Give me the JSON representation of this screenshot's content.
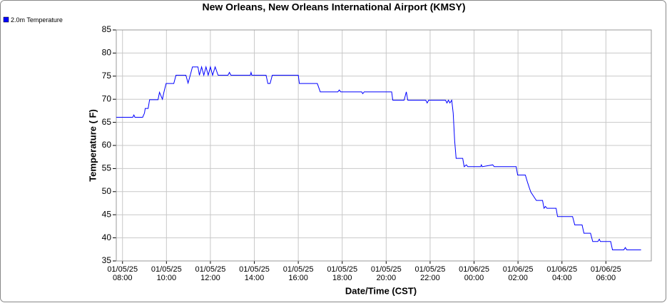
{
  "chart_data": {
    "type": "line",
    "title": "New Orleans, New Orleans International Airport (KMSY)",
    "xlabel": "Date/Time (CST)",
    "ylabel": "Temperature ( F)",
    "legend": "top-left",
    "grid": true,
    "ylim": [
      35,
      85
    ],
    "yticks": [
      35,
      40,
      45,
      50,
      55,
      60,
      65,
      70,
      75,
      80,
      85
    ],
    "xlim": [
      "2025-01-05 07:43",
      "2025-01-06 08:04"
    ],
    "xticks": [
      {
        "value": "2025-01-05 08:00",
        "label": [
          "01/05/25",
          "08:00"
        ]
      },
      {
        "value": "2025-01-05 10:00",
        "label": [
          "01/05/25",
          "10:00"
        ]
      },
      {
        "value": "2025-01-05 12:00",
        "label": [
          "01/05/25",
          "12:00"
        ]
      },
      {
        "value": "2025-01-05 14:00",
        "label": [
          "01/05/25",
          "14:00"
        ]
      },
      {
        "value": "2025-01-05 16:00",
        "label": [
          "01/05/25",
          "16:00"
        ]
      },
      {
        "value": "2025-01-05 18:00",
        "label": [
          "01/05/25",
          "18:00"
        ]
      },
      {
        "value": "2025-01-05 20:00",
        "label": [
          "01/05/25",
          "20:00"
        ]
      },
      {
        "value": "2025-01-05 22:00",
        "label": [
          "01/05/25",
          "22:00"
        ]
      },
      {
        "value": "2025-01-06 00:00",
        "label": [
          "01/06/25",
          "00:00"
        ]
      },
      {
        "value": "2025-01-06 02:00",
        "label": [
          "01/06/25",
          "02:00"
        ]
      },
      {
        "value": "2025-01-06 04:00",
        "label": [
          "01/06/25",
          "04:00"
        ]
      },
      {
        "value": "2025-01-06 06:00",
        "label": [
          "01/06/25",
          "06:00"
        ]
      }
    ],
    "x": [
      "2025-01-05 07:43",
      "2025-01-05 08:28",
      "2025-01-05 08:31",
      "2025-01-05 08:34",
      "2025-01-05 08:55",
      "2025-01-05 09:00",
      "2025-01-05 09:02",
      "2025-01-05 09:10",
      "2025-01-05 09:14",
      "2025-01-05 09:37",
      "2025-01-05 09:41",
      "2025-01-05 09:49",
      "2025-01-05 09:53",
      "2025-01-05 09:59",
      "2025-01-05 10:20",
      "2025-01-05 10:26",
      "2025-01-05 10:53",
      "2025-01-05 10:59",
      "2025-01-05 11:05",
      "2025-01-05 11:11",
      "2025-01-05 11:26",
      "2025-01-05 11:30",
      "2025-01-05 11:36",
      "2025-01-05 11:42",
      "2025-01-05 11:48",
      "2025-01-05 11:54",
      "2025-01-05 12:00",
      "2025-01-05 12:06",
      "2025-01-05 12:13",
      "2025-01-05 12:21",
      "2025-01-05 12:48",
      "2025-01-05 12:52",
      "2025-01-05 12:56",
      "2025-01-05 13:49",
      "2025-01-05 13:51",
      "2025-01-05 13:53",
      "2025-01-05 14:32",
      "2025-01-05 14:37",
      "2025-01-05 14:43",
      "2025-01-05 14:49",
      "2025-01-05 16:00",
      "2025-01-05 16:03",
      "2025-01-05 16:52",
      "2025-01-05 17:00",
      "2025-01-05 17:48",
      "2025-01-05 17:52",
      "2025-01-05 17:56",
      "2025-01-05 18:53",
      "2025-01-05 18:56",
      "2025-01-05 19:00",
      "2025-01-05 20:15",
      "2025-01-05 20:18",
      "2025-01-05 20:49",
      "2025-01-05 20:55",
      "2025-01-05 20:59",
      "2025-01-05 21:48",
      "2025-01-05 21:52",
      "2025-01-05 21:56",
      "2025-01-05 22:42",
      "2025-01-05 22:46",
      "2025-01-05 22:50",
      "2025-01-05 22:54",
      "2025-01-05 22:59",
      "2025-01-05 23:03",
      "2025-01-05 23:07",
      "2025-01-05 23:11",
      "2025-01-05 23:29",
      "2025-01-05 23:33",
      "2025-01-05 23:39",
      "2025-01-05 23:43",
      "2025-01-06 00:18",
      "2025-01-06 00:20",
      "2025-01-06 00:22",
      "2025-01-06 00:51",
      "2025-01-06 00:55",
      "2025-01-06 01:55",
      "2025-01-06 01:59",
      "2025-01-06 02:20",
      "2025-01-06 02:26",
      "2025-01-06 02:31",
      "2025-01-06 02:35",
      "2025-01-06 02:50",
      "2025-01-06 03:07",
      "2025-01-06 03:11",
      "2025-01-06 03:15",
      "2025-01-06 03:19",
      "2025-01-06 03:44",
      "2025-01-06 03:48",
      "2025-01-06 04:29",
      "2025-01-06 04:35",
      "2025-01-06 04:55",
      "2025-01-06 05:00",
      "2025-01-06 05:18",
      "2025-01-06 05:24",
      "2025-01-06 05:38",
      "2025-01-06 05:42",
      "2025-01-06 05:45",
      "2025-01-06 06:13",
      "2025-01-06 06:18",
      "2025-01-06 06:49",
      "2025-01-06 06:53",
      "2025-01-06 06:57",
      "2025-01-06 07:36"
    ],
    "series": [
      {
        "name": "2.0m Temperature",
        "color": "#0000ff",
        "values": [
          66.1,
          66.1,
          66.6,
          66.1,
          66.1,
          67.0,
          68.0,
          68.0,
          69.9,
          69.9,
          71.5,
          70.0,
          71.5,
          73.4,
          73.4,
          75.2,
          75.2,
          73.5,
          75.2,
          77.0,
          77.0,
          75.2,
          77.0,
          75.2,
          77.0,
          75.2,
          77.0,
          75.2,
          77.0,
          75.2,
          75.2,
          75.8,
          75.2,
          75.2,
          75.8,
          75.2,
          75.2,
          73.4,
          73.4,
          75.2,
          75.2,
          73.4,
          73.4,
          71.6,
          71.6,
          72.0,
          71.6,
          71.6,
          71.2,
          71.6,
          71.6,
          69.8,
          69.8,
          71.6,
          69.8,
          69.8,
          69.2,
          69.8,
          69.8,
          69.2,
          69.8,
          69.2,
          69.8,
          67.0,
          61.0,
          57.2,
          57.2,
          55.4,
          55.8,
          55.4,
          55.4,
          55.8,
          55.4,
          55.8,
          55.4,
          55.4,
          53.6,
          53.6,
          52.0,
          50.8,
          49.9,
          48.1,
          48.1,
          46.4,
          46.8,
          46.4,
          46.4,
          44.6,
          44.6,
          42.8,
          42.8,
          41.0,
          41.0,
          39.2,
          39.2,
          39.7,
          39.2,
          39.2,
          37.4,
          37.4,
          37.9,
          37.4,
          37.4
        ]
      }
    ]
  }
}
